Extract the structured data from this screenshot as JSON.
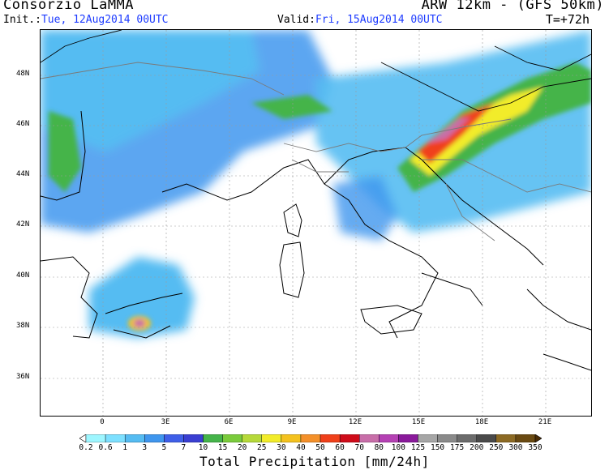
{
  "header": {
    "org_title": "Consorzio LaMMA",
    "model_title": "ARW 12km - (GFS 50km)",
    "init_label": "Init.:",
    "init_value": "Tue, 12Aug2014 00UTC",
    "valid_label": "Valid:",
    "valid_value": "Fri, 15Aug2014 00UTC",
    "forecast_step": "T=+72h"
  },
  "axes": {
    "lat_labels": [
      "48N",
      "46N",
      "44N",
      "42N",
      "40N",
      "38N",
      "36N"
    ],
    "lon_labels": [
      "0",
      "3E",
      "6E",
      "9E",
      "12E",
      "15E",
      "18E",
      "21E"
    ]
  },
  "colorbar": {
    "title": "Total Precipitation [mm/24h]",
    "levels": [
      "0.2",
      "0.6",
      "1",
      "3",
      "5",
      "7",
      "10",
      "15",
      "20",
      "25",
      "30",
      "40",
      "50",
      "60",
      "70",
      "80",
      "100",
      "125",
      "150",
      "175",
      "200",
      "250",
      "300",
      "350"
    ],
    "colors": [
      "#9ef6ff",
      "#7de0ff",
      "#55bcf2",
      "#3f96ee",
      "#3f5fe8",
      "#3a3fd2",
      "#45b44a",
      "#7acb3c",
      "#b6d93a",
      "#f2ec2a",
      "#f4c21f",
      "#f4902a",
      "#f0401a",
      "#cf0c1a",
      "#c86ea9",
      "#b541b4",
      "#8a1a9b",
      "#a6a6a6",
      "#8a8a8a",
      "#6c6c6c",
      "#4a4a4a",
      "#8c6a24",
      "#6a4a12",
      "#4a2c06"
    ]
  },
  "map": {
    "lat_lines": [
      48,
      46,
      44,
      42,
      40,
      38,
      36
    ],
    "lon_lines": [
      0,
      3,
      6,
      9,
      12,
      15,
      18,
      21
    ]
  }
}
